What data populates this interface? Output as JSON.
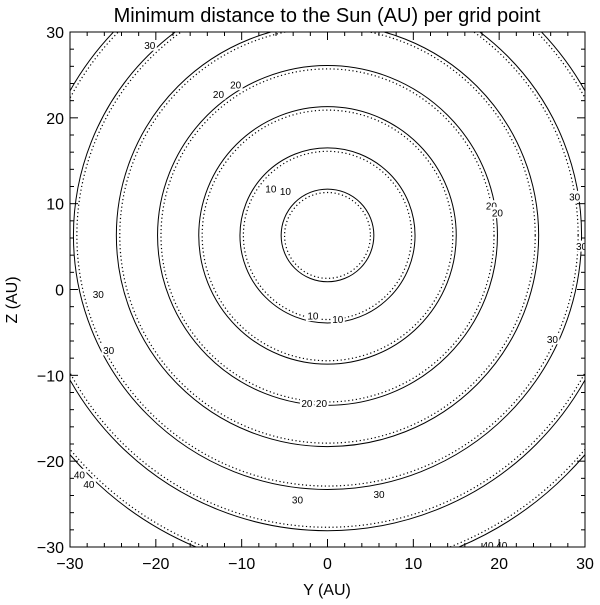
{
  "chart_data": {
    "type": "contour",
    "title": "Minimum distance to the Sun (AU) per grid point",
    "xlabel": "Y (AU)",
    "ylabel": "Z (AU)",
    "xlim": [
      -30,
      30
    ],
    "ylim": [
      -30,
      30
    ],
    "xticks": [
      -30,
      -20,
      -10,
      0,
      10,
      20,
      30
    ],
    "yticks": [
      -30,
      -20,
      -10,
      0,
      10,
      20,
      30
    ],
    "x_tick_labels": [
      "−30",
      "−20",
      "−10",
      "0",
      "10",
      "20",
      "30"
    ],
    "y_tick_labels": [
      "−30",
      "−20",
      "−10",
      "0",
      "10",
      "20",
      "30"
    ],
    "grid": false,
    "center": [
      0,
      6.3
    ],
    "series": [
      {
        "style": "solid",
        "contours": [
          {
            "radius": 5.4,
            "label": ""
          },
          {
            "radius": 10.2,
            "label": "10"
          },
          {
            "radius": 15.0,
            "label": ""
          },
          {
            "radius": 19.8,
            "label": "20"
          },
          {
            "radius": 24.6,
            "label": ""
          },
          {
            "radius": 29.6,
            "label": "30"
          },
          {
            "radius": 34.4,
            "label": ""
          },
          {
            "radius": 39.4,
            "label": "40"
          }
        ]
      },
      {
        "style": "dotted",
        "contours": [
          {
            "radius": 5.0,
            "label": ""
          },
          {
            "radius": 9.8,
            "label": "10"
          },
          {
            "radius": 14.6,
            "label": ""
          },
          {
            "radius": 19.4,
            "label": "20"
          },
          {
            "radius": 24.2,
            "label": ""
          },
          {
            "radius": 29.2,
            "label": "30"
          },
          {
            "radius": 34.0,
            "label": ""
          },
          {
            "radius": 39.0,
            "label": "40"
          }
        ]
      }
    ],
    "contour_labels": [
      {
        "text": "10",
        "x": -1.7,
        "y": -3.1
      },
      {
        "text": "10",
        "x": 1.2,
        "y": -3.5
      },
      {
        "text": "10",
        "x": -6.6,
        "y": 11.7
      },
      {
        "text": "10",
        "x": -4.9,
        "y": 11.4
      },
      {
        "text": "20",
        "x": -12.7,
        "y": 22.7
      },
      {
        "text": "20",
        "x": -10.7,
        "y": 23.8
      },
      {
        "text": "20",
        "x": -2.4,
        "y": -13.3
      },
      {
        "text": "20",
        "x": -0.7,
        "y": -13.3
      },
      {
        "text": "20",
        "x": 19.1,
        "y": 9.7
      },
      {
        "text": "20",
        "x": 19.8,
        "y": 8.9
      },
      {
        "text": "30",
        "x": -20.7,
        "y": 28.4
      },
      {
        "text": "30",
        "x": -26.7,
        "y": -0.6
      },
      {
        "text": "30",
        "x": -25.5,
        "y": -7.1
      },
      {
        "text": "30",
        "x": -3.5,
        "y": -24.5
      },
      {
        "text": "30",
        "x": 6.0,
        "y": -23.9
      },
      {
        "text": "30",
        "x": 28.8,
        "y": 10.8
      },
      {
        "text": "30",
        "x": 26.2,
        "y": -5.8
      },
      {
        "text": "30",
        "x": 29.6,
        "y": 5.0
      },
      {
        "text": "40",
        "x": -28.9,
        "y": -21.6
      },
      {
        "text": "40",
        "x": -27.8,
        "y": -22.7
      },
      {
        "text": "40",
        "x": 18.7,
        "y": -29.8
      },
      {
        "text": "40",
        "x": 20.3,
        "y": -29.8
      }
    ]
  }
}
